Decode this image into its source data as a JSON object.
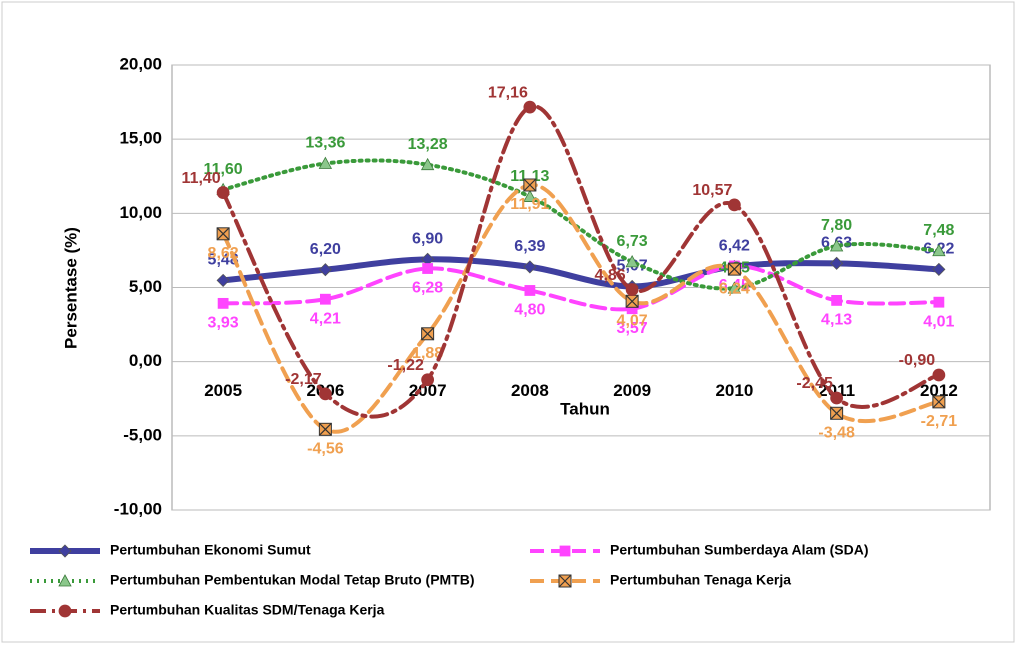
{
  "chart_data": {
    "type": "line",
    "y_label": "Persentase (%)",
    "x_label": "Tahun",
    "categories": [
      "2005",
      "2006",
      "2007",
      "2008",
      "2009",
      "2010",
      "2011",
      "2012"
    ],
    "ylim": [
      -10,
      20
    ],
    "yticks": [
      {
        "value": -10,
        "label": "-10,00"
      },
      {
        "value": -5,
        "label": "-5,00"
      },
      {
        "value": 0,
        "label": "0,00"
      },
      {
        "value": 5,
        "label": "5,00"
      },
      {
        "value": 10,
        "label": "10,00"
      },
      {
        "value": 15,
        "label": "15,00"
      },
      {
        "value": 20,
        "label": "20,00"
      }
    ],
    "grid": true,
    "series": [
      {
        "name": "Pertumbuhan Ekonomi Sumut",
        "color": "#3f3f9f",
        "marker": "diamond",
        "line_style": "solid",
        "values": [
          5.48,
          6.2,
          6.9,
          6.39,
          5.07,
          6.42,
          6.63,
          6.22
        ],
        "value_labels": [
          "5,48",
          "6,20",
          "6,90",
          "6,39",
          "5,07",
          "6,42",
          "6,63",
          "6,22"
        ]
      },
      {
        "name": "Pertumbuhan Sumberdaya Alam (SDA)",
        "color": "#ff44ff",
        "marker": "square",
        "line_style": "dash",
        "values": [
          3.93,
          4.21,
          6.28,
          4.8,
          3.57,
          6.45,
          4.13,
          4.01
        ],
        "value_labels": [
          "3,93",
          "4,21",
          "6,28",
          "4,80",
          "3,57",
          "6,45",
          "4,13",
          "4,01"
        ]
      },
      {
        "name": "Pertumbuhan Pembentukan Modal Tetap Bruto (PMTB)",
        "color": "#3a9a3a",
        "marker": "triangle",
        "line_style": "dot",
        "values": [
          11.6,
          13.36,
          13.28,
          11.13,
          6.73,
          4.95,
          7.8,
          7.48
        ],
        "value_labels": [
          "11,60",
          "13,36",
          "13,28",
          "11,13",
          "6,73",
          "4,95",
          "7,80",
          "7,48"
        ]
      },
      {
        "name": "Pertumbuhan Tenaga Kerja",
        "color": "#f0a050",
        "marker": "xsquare",
        "line_style": "dash",
        "values": [
          8.62,
          -4.56,
          1.88,
          11.91,
          4.07,
          6.24,
          -3.48,
          -2.71
        ],
        "value_labels": [
          "8,62",
          "-4,56",
          "1,88",
          "11,91",
          "4,07",
          "6,24",
          "-3,48",
          "-2,71"
        ]
      },
      {
        "name": "Pertumbuhan Kualitas SDM/Tenaga Kerja",
        "color": "#a03535",
        "marker": "circle",
        "line_style": "dashdot",
        "values": [
          11.4,
          -2.17,
          -1.22,
          17.16,
          4.86,
          10.57,
          -2.45,
          -0.9
        ],
        "value_labels": [
          "11,40",
          "-2,17",
          "-1,22",
          "17,16",
          "4,86",
          "10,57",
          "-2,45",
          "-0,90"
        ]
      }
    ]
  }
}
